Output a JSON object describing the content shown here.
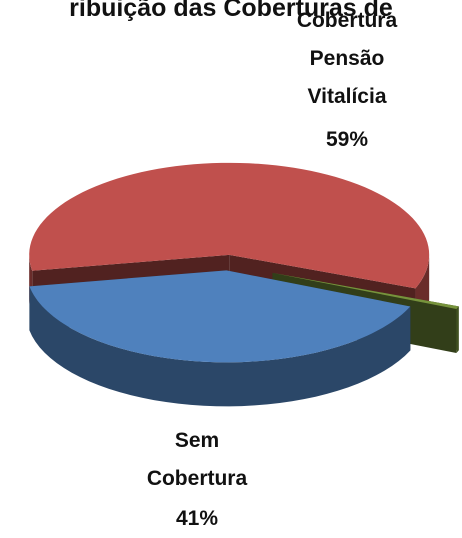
{
  "chart_data": {
    "type": "pie3d",
    "title": "ribuição das Coberturas de",
    "categories": [
      "Cobertura Pensão Vitalícia",
      null,
      "Sem Cobertura"
    ],
    "values": [
      59,
      0.5,
      41
    ],
    "value_labels": [
      "59%",
      null,
      "41%"
    ],
    "colors": [
      "#c0504d",
      "#77933c",
      "#4f81bd"
    ]
  }
}
